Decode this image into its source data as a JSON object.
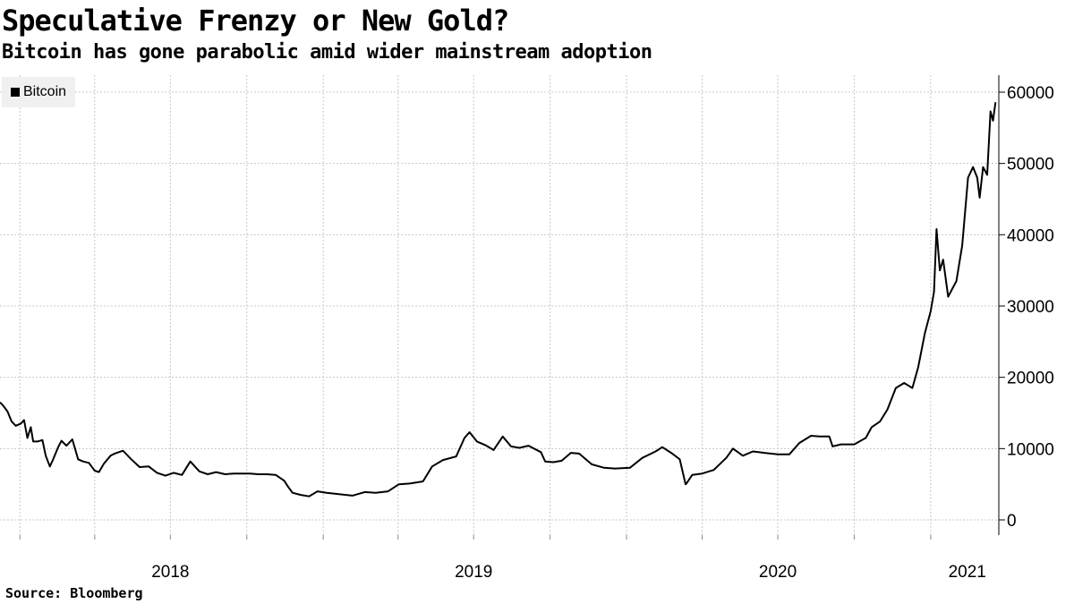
{
  "header": {
    "title": "Speculative Frenzy or New Gold?",
    "subtitle": "Bitcoin has gone parabolic amid wider mainstream adoption"
  },
  "footer": {
    "source": "Source:  Bloomberg"
  },
  "legend": {
    "label": "Bitcoin"
  },
  "colors": {
    "line": "#000000",
    "grid": "#c8c8c8",
    "legend_bg": "#f0f0f0"
  },
  "chart_data": {
    "type": "line",
    "title": "Speculative Frenzy or New Gold?",
    "subtitle": "Bitcoin has gone parabolic amid wider mainstream adoption",
    "xlabel": "",
    "ylabel": "",
    "y_axis_side": "right",
    "grid": true,
    "legend_position": "top-left",
    "xlim": [
      "2017-12-08",
      "2021-03-24"
    ],
    "ylim": [
      0,
      62000
    ],
    "y_ticks": [
      0,
      10000,
      20000,
      30000,
      40000,
      50000,
      60000
    ],
    "y_tick_labels": [
      "0",
      "10000",
      "20000",
      "30000",
      "40000",
      "50000",
      "60000"
    ],
    "x_ticks": [
      {
        "date": "2018-01-01",
        "label": ""
      },
      {
        "date": "2018-04-01",
        "label": ""
      },
      {
        "date": "2018-07-01",
        "label": ""
      },
      {
        "date": "2018-10-01",
        "label": ""
      },
      {
        "date": "2019-01-01",
        "label": ""
      },
      {
        "date": "2019-04-01",
        "label": ""
      },
      {
        "date": "2019-07-01",
        "label": ""
      },
      {
        "date": "2019-10-01",
        "label": ""
      },
      {
        "date": "2020-01-01",
        "label": ""
      },
      {
        "date": "2020-04-01",
        "label": ""
      },
      {
        "date": "2020-07-01",
        "label": ""
      },
      {
        "date": "2020-10-01",
        "label": ""
      },
      {
        "date": "2021-01-01",
        "label": ""
      }
    ],
    "x_year_labels": [
      {
        "date": "2018-07-01",
        "label": "2018"
      },
      {
        "date": "2019-07-01",
        "label": "2019"
      },
      {
        "date": "2020-07-01",
        "label": "2020"
      },
      {
        "date": "2021-02-14",
        "label": "2021"
      }
    ],
    "series": [
      {
        "name": "Bitcoin",
        "x": [
          "2017-12-08",
          "2017-12-12",
          "2017-12-17",
          "2017-12-22",
          "2017-12-27",
          "2018-01-02",
          "2018-01-06",
          "2018-01-10",
          "2018-01-14",
          "2018-01-17",
          "2018-01-22",
          "2018-01-28",
          "2018-02-01",
          "2018-02-06",
          "2018-02-10",
          "2018-02-16",
          "2018-02-20",
          "2018-02-26",
          "2018-03-05",
          "2018-03-12",
          "2018-03-18",
          "2018-03-25",
          "2018-04-01",
          "2018-04-06",
          "2018-04-12",
          "2018-04-20",
          "2018-04-25",
          "2018-05-05",
          "2018-05-15",
          "2018-05-25",
          "2018-06-05",
          "2018-06-15",
          "2018-06-25",
          "2018-07-05",
          "2018-07-15",
          "2018-07-25",
          "2018-08-05",
          "2018-08-15",
          "2018-08-25",
          "2018-09-05",
          "2018-09-15",
          "2018-09-25",
          "2018-10-05",
          "2018-10-15",
          "2018-10-25",
          "2018-11-05",
          "2018-11-15",
          "2018-11-20",
          "2018-11-25",
          "2018-12-05",
          "2018-12-15",
          "2018-12-25",
          "2019-01-05",
          "2019-01-20",
          "2019-02-05",
          "2019-02-20",
          "2019-03-05",
          "2019-03-20",
          "2019-04-02",
          "2019-04-15",
          "2019-05-01",
          "2019-05-12",
          "2019-05-25",
          "2019-06-10",
          "2019-06-20",
          "2019-06-26",
          "2019-07-05",
          "2019-07-15",
          "2019-07-25",
          "2019-08-05",
          "2019-08-15",
          "2019-08-25",
          "2019-09-05",
          "2019-09-20",
          "2019-09-25",
          "2019-10-05",
          "2019-10-15",
          "2019-10-26",
          "2019-11-05",
          "2019-11-20",
          "2019-12-05",
          "2019-12-18",
          "2020-01-05",
          "2020-01-20",
          "2020-02-05",
          "2020-02-13",
          "2020-02-25",
          "2020-03-05",
          "2020-03-12",
          "2020-03-13",
          "2020-03-20",
          "2020-04-01",
          "2020-04-15",
          "2020-04-30",
          "2020-05-08",
          "2020-05-20",
          "2020-06-01",
          "2020-06-15",
          "2020-07-01",
          "2020-07-15",
          "2020-07-27",
          "2020-08-10",
          "2020-08-20",
          "2020-09-01",
          "2020-09-05",
          "2020-09-15",
          "2020-10-01",
          "2020-10-15",
          "2020-10-22",
          "2020-11-01",
          "2020-11-10",
          "2020-11-20",
          "2020-11-30",
          "2020-12-10",
          "2020-12-17",
          "2020-12-25",
          "2021-01-01",
          "2021-01-05",
          "2021-01-08",
          "2021-01-12",
          "2021-01-16",
          "2021-01-22",
          "2021-01-26",
          "2021-02-01",
          "2021-02-08",
          "2021-02-15",
          "2021-02-21",
          "2021-02-26",
          "2021-03-01",
          "2021-03-05",
          "2021-03-10",
          "2021-03-14",
          "2021-03-17",
          "2021-03-20"
        ],
        "values": [
          16500,
          16000,
          15200,
          13800,
          13200,
          13500,
          14000,
          11500,
          13000,
          11000,
          11000,
          11200,
          9000,
          7500,
          8500,
          10200,
          11100,
          10400,
          11300,
          8500,
          8200,
          8000,
          6900,
          6700,
          7900,
          9000,
          9300,
          9700,
          8500,
          7400,
          7500,
          6600,
          6200,
          6600,
          6300,
          8200,
          6800,
          6400,
          6700,
          6400,
          6500,
          6500,
          6500,
          6400,
          6400,
          6300,
          5500,
          4600,
          3800,
          3500,
          3300,
          4000,
          3800,
          3600,
          3400,
          3900,
          3800,
          4000,
          5000,
          5100,
          5400,
          7500,
          8400,
          8900,
          11500,
          12300,
          11000,
          10500,
          9800,
          11700,
          10300,
          10100,
          10400,
          9500,
          8200,
          8100,
          8300,
          9400,
          9300,
          7800,
          7300,
          7200,
          7300,
          8700,
          9600,
          10200,
          9300,
          8500,
          5000,
          5100,
          6300,
          6500,
          7000,
          8700,
          10000,
          9000,
          9600,
          9400,
          9200,
          9200,
          10800,
          11800,
          11700,
          11700,
          10300,
          10600,
          10600,
          11500,
          13000,
          13800,
          15500,
          18500,
          19200,
          18500,
          21400,
          26200,
          29300,
          32000,
          40800,
          35000,
          36500,
          31300,
          32200,
          33500,
          38500,
          48000,
          49500,
          48000,
          45200,
          49500,
          48400,
          57300,
          56000,
          58600
        ]
      }
    ]
  }
}
